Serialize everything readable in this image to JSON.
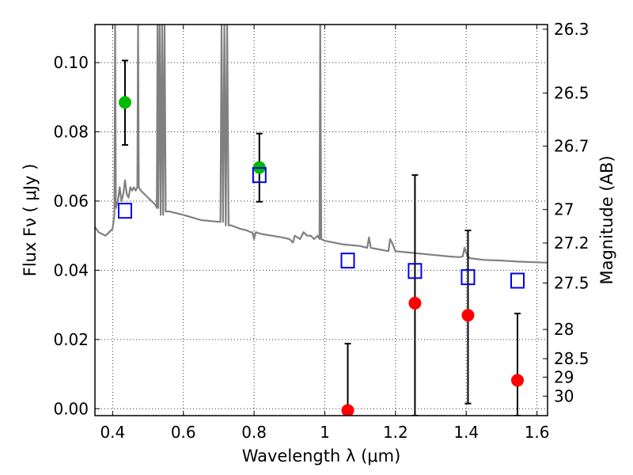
{
  "chart_data": {
    "type": "scatter",
    "title": "",
    "xlabel": "Wavelength  λ (μm)",
    "ylabel": "Flux  Fν  ( μJy )",
    "ylabel_right": "Magnitude (AB)",
    "xlim": [
      0.35,
      1.63
    ],
    "ylim": [
      -0.002,
      0.111
    ],
    "grid": true,
    "x_ticks": [
      {
        "value": 0.4,
        "label": "0.4"
      },
      {
        "value": 0.6,
        "label": "0.6"
      },
      {
        "value": 0.8,
        "label": "0.8"
      },
      {
        "value": 1.0,
        "label": "1"
      },
      {
        "value": 1.2,
        "label": "1.2"
      },
      {
        "value": 1.4,
        "label": "1.4"
      },
      {
        "value": 1.6,
        "label": "1.6"
      }
    ],
    "y_ticks": [
      {
        "value": 0.0,
        "label": "0.00"
      },
      {
        "value": 0.02,
        "label": "0.02"
      },
      {
        "value": 0.04,
        "label": "0.04"
      },
      {
        "value": 0.06,
        "label": "0.06"
      },
      {
        "value": 0.08,
        "label": "0.08"
      },
      {
        "value": 0.1,
        "label": "0.10"
      }
    ],
    "right_ticks": [
      {
        "mag": 26.3,
        "label": "26.3"
      },
      {
        "mag": 26.5,
        "label": "26.5"
      },
      {
        "mag": 26.7,
        "label": "26.7"
      },
      {
        "mag": 27.0,
        "label": "27"
      },
      {
        "mag": 27.2,
        "label": "27.2"
      },
      {
        "mag": 27.5,
        "label": "27.5"
      },
      {
        "mag": 28.0,
        "label": "28"
      },
      {
        "mag": 28.5,
        "label": "28.5"
      },
      {
        "mag": 29.0,
        "label": "29"
      },
      {
        "mag": 30.0,
        "label": "30"
      }
    ],
    "series": [
      {
        "name": "template spectrum",
        "kind": "line",
        "color": "#808080",
        "points": [
          [
            0.35,
            0.0525
          ],
          [
            0.36,
            0.051
          ],
          [
            0.37,
            0.0505
          ],
          [
            0.38,
            0.05
          ],
          [
            0.39,
            0.051
          ],
          [
            0.4,
            0.052
          ],
          [
            0.405,
            0.056
          ],
          [
            0.407,
            0.111
          ],
          [
            0.409,
            0.058
          ],
          [
            0.415,
            0.06
          ],
          [
            0.42,
            0.064
          ],
          [
            0.425,
            0.06
          ],
          [
            0.43,
            0.062
          ],
          [
            0.435,
            0.066
          ],
          [
            0.44,
            0.062
          ],
          [
            0.445,
            0.061
          ],
          [
            0.45,
            0.064
          ],
          [
            0.455,
            0.063
          ],
          [
            0.46,
            0.064
          ],
          [
            0.465,
            0.063
          ],
          [
            0.47,
            0.064
          ],
          [
            0.472,
            0.111
          ],
          [
            0.474,
            0.064
          ],
          [
            0.48,
            0.063
          ],
          [
            0.5,
            0.061
          ],
          [
            0.52,
            0.059
          ],
          [
            0.525,
            0.058
          ],
          [
            0.527,
            0.111
          ],
          [
            0.529,
            0.058
          ],
          [
            0.533,
            0.111
          ],
          [
            0.536,
            0.056
          ],
          [
            0.54,
            0.111
          ],
          [
            0.543,
            0.056
          ],
          [
            0.547,
            0.111
          ],
          [
            0.55,
            0.057
          ],
          [
            0.56,
            0.057
          ],
          [
            0.6,
            0.056
          ],
          [
            0.65,
            0.0545
          ],
          [
            0.7,
            0.054
          ],
          [
            0.705,
            0.054
          ],
          [
            0.708,
            0.111
          ],
          [
            0.712,
            0.054
          ],
          [
            0.716,
            0.111
          ],
          [
            0.72,
            0.053
          ],
          [
            0.724,
            0.111
          ],
          [
            0.728,
            0.053
          ],
          [
            0.735,
            0.053
          ],
          [
            0.76,
            0.052
          ],
          [
            0.78,
            0.0515
          ],
          [
            0.79,
            0.051
          ],
          [
            0.795,
            0.051
          ],
          [
            0.8,
            0.049
          ],
          [
            0.805,
            0.051
          ],
          [
            0.82,
            0.0505
          ],
          [
            0.85,
            0.05
          ],
          [
            0.88,
            0.0495
          ],
          [
            0.9,
            0.049
          ],
          [
            0.91,
            0.048
          ],
          [
            0.915,
            0.05
          ],
          [
            0.93,
            0.049
          ],
          [
            0.935,
            0.05
          ],
          [
            0.94,
            0.051
          ],
          [
            0.95,
            0.05
          ],
          [
            0.96,
            0.05
          ],
          [
            0.97,
            0.049
          ],
          [
            0.98,
            0.05
          ],
          [
            0.985,
            0.049
          ],
          [
            0.987,
            0.111
          ],
          [
            0.99,
            0.049
          ],
          [
            1.0,
            0.0485
          ],
          [
            1.05,
            0.0475
          ],
          [
            1.1,
            0.047
          ],
          [
            1.12,
            0.0465
          ],
          [
            1.125,
            0.0495
          ],
          [
            1.13,
            0.0465
          ],
          [
            1.18,
            0.0455
          ],
          [
            1.185,
            0.049
          ],
          [
            1.19,
            0.048
          ],
          [
            1.2,
            0.0455
          ],
          [
            1.25,
            0.045
          ],
          [
            1.3,
            0.0445
          ],
          [
            1.35,
            0.044
          ],
          [
            1.38,
            0.0438
          ],
          [
            1.39,
            0.044
          ],
          [
            1.395,
            0.0465
          ],
          [
            1.4,
            0.045
          ],
          [
            1.405,
            0.044
          ],
          [
            1.41,
            0.0435
          ],
          [
            1.45,
            0.043
          ],
          [
            1.5,
            0.0428
          ],
          [
            1.55,
            0.0425
          ],
          [
            1.6,
            0.0423
          ],
          [
            1.63,
            0.0422
          ]
        ]
      },
      {
        "name": "green points",
        "kind": "marker",
        "marker": "circle",
        "color": "#00bb00",
        "points": [
          {
            "x": 0.435,
            "y": 0.0885,
            "ylow": 0.0762,
            "yhigh": 0.1006
          },
          {
            "x": 0.815,
            "y": 0.0697,
            "ylow": 0.0598,
            "yhigh": 0.0795
          }
        ]
      },
      {
        "name": "red points",
        "kind": "marker",
        "marker": "circle",
        "color": "#ff0000",
        "points": [
          {
            "x": 1.065,
            "y": -0.0005,
            "ylow": -0.002,
            "yhigh": 0.0188
          },
          {
            "x": 1.255,
            "y": 0.0305,
            "ylow": -0.002,
            "yhigh": 0.0675
          },
          {
            "x": 1.405,
            "y": 0.027,
            "ylow": 0.0015,
            "yhigh": 0.0515
          },
          {
            "x": 1.545,
            "y": 0.0082,
            "ylow": -0.002,
            "yhigh": 0.0275
          }
        ]
      },
      {
        "name": "blue squares",
        "kind": "marker",
        "marker": "square",
        "color": "#0000ee",
        "points": [
          {
            "x": 0.435,
            "y": 0.0572
          },
          {
            "x": 0.815,
            "y": 0.0675
          },
          {
            "x": 1.065,
            "y": 0.0428
          },
          {
            "x": 1.255,
            "y": 0.0398
          },
          {
            "x": 1.405,
            "y": 0.038
          },
          {
            "x": 1.545,
            "y": 0.037
          }
        ]
      }
    ]
  }
}
